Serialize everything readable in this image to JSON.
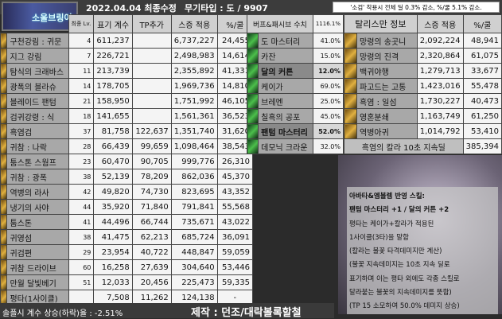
{
  "header": {
    "logo_text": "소울브링어",
    "date": "2022.04.04 최종수정",
    "weapon": "무기타입 : 도 / 9907",
    "notice": "'소검' 착용시 전체 딜 0.3% 감소, %/쿨 5.1% 감소."
  },
  "skills": {
    "columns": [
      "최종 Lv.",
      "표기 계수",
      "TP추가",
      "스증 적용",
      "%/쿨"
    ],
    "rows": [
      {
        "name": "구천강림 : 귀문",
        "lv": "4",
        "base": "611,237",
        "tp": "",
        "applied": "6,737,227",
        "cool": "24,455"
      },
      {
        "name": "지그 강림",
        "lv": "7",
        "base": "226,721",
        "tp": "",
        "applied": "2,498,983",
        "cool": "14,614"
      },
      {
        "name": "탐식의 크래바스",
        "lv": "11",
        "base": "213,739",
        "tp": "",
        "applied": "2,355,892",
        "cool": "41,331"
      },
      {
        "name": "광폭의 블라슈",
        "lv": "14",
        "base": "178,705",
        "tp": "",
        "applied": "1,969,736",
        "cool": "14,810"
      },
      {
        "name": "블레이드 팬텀",
        "lv": "21",
        "base": "158,950",
        "tp": "",
        "applied": "1,751,992",
        "cool": "46,105"
      },
      {
        "name": "검귀강령 : 식",
        "lv": "18",
        "base": "141,655",
        "tp": "",
        "applied": "1,561,361",
        "cool": "36,523"
      },
      {
        "name": "흑염검",
        "lv": "37",
        "base": "81,758",
        "tp": "122,637",
        "applied": "1,351,740",
        "cool": "31,620"
      },
      {
        "name": "귀참 : 나락",
        "lv": "28",
        "base": "66,439",
        "tp": "99,659",
        "applied": "1,098,464",
        "cool": "38,543"
      },
      {
        "name": "툼스톤 스웜프",
        "lv": "23",
        "base": "60,470",
        "tp": "90,705",
        "applied": "999,776",
        "cool": "26,310"
      },
      {
        "name": "귀참 : 광폭",
        "lv": "38",
        "base": "52,139",
        "tp": "78,209",
        "applied": "862,036",
        "cool": "45,370"
      },
      {
        "name": "역병의 라사",
        "lv": "42",
        "base": "49,820",
        "tp": "74,730",
        "applied": "823,695",
        "cool": "43,352"
      },
      {
        "name": "냉기의 사야",
        "lv": "44",
        "base": "35,920",
        "tp": "71,840",
        "applied": "791,841",
        "cool": "55,568"
      },
      {
        "name": "툼스톤",
        "lv": "41",
        "base": "44,496",
        "tp": "66,744",
        "applied": "735,671",
        "cool": "43,022"
      },
      {
        "name": "귀영섬",
        "lv": "38",
        "base": "41,475",
        "tp": "62,213",
        "applied": "685,724",
        "cool": "36,091"
      },
      {
        "name": "귀검편",
        "lv": "29",
        "base": "23,954",
        "tp": "40,722",
        "applied": "448,847",
        "cool": "59,059"
      },
      {
        "name": "귀참 드라이브",
        "lv": "60",
        "base": "16,258",
        "tp": "27,639",
        "applied": "304,640",
        "cool": "53,446"
      },
      {
        "name": "만월 달빛베기",
        "lv": "51",
        "base": "12,033",
        "tp": "20,456",
        "applied": "225,473",
        "cool": "59,335"
      },
      {
        "name": "평타(1사이클)",
        "lv": "",
        "base": "7,508",
        "tp": "11,262",
        "applied": "124,138",
        "cool": "-"
      }
    ]
  },
  "buffs": {
    "header": "버프&패시브 수치",
    "total": "1116.1%",
    "rows": [
      {
        "name": "도 마스터리",
        "pct": "41.0%",
        "hl": false
      },
      {
        "name": "카잔",
        "pct": "15.0%",
        "hl": false
      },
      {
        "name": "달의 커튼",
        "pct": "12.0%",
        "hl": true
      },
      {
        "name": "케이가",
        "pct": "69.0%",
        "hl": false
      },
      {
        "name": "브레멘",
        "pct": "25.0%",
        "hl": false
      },
      {
        "name": "칠흑의 공포",
        "pct": "45.0%",
        "hl": false
      },
      {
        "name": "팬텀 마스터리",
        "pct": "52.0%",
        "hl": true
      },
      {
        "name": "데모닉 크라운",
        "pct": "32.0%",
        "hl": false
      }
    ]
  },
  "talismans": {
    "header": "탈리스만 정보",
    "col_applied": "스증 적용",
    "col_cool": "%/쿨",
    "rows": [
      {
        "name": "망령의 송곳니",
        "applied": "2,092,224",
        "cool": "48,941"
      },
      {
        "name": "망령의 진격",
        "applied": "2,320,864",
        "cool": "61,075"
      },
      {
        "name": "백귀야행",
        "applied": "1,279,713",
        "cool": "33,677"
      },
      {
        "name": "파고드는 고통",
        "applied": "1,423,016",
        "cool": "55,478"
      },
      {
        "name": "흑염 : 일섬",
        "applied": "1,730,227",
        "cool": "40,473"
      },
      {
        "name": "영혼분쇄",
        "applied": "1,163,749",
        "cool": "61,250"
      },
      {
        "name": "역병아귀",
        "applied": "1,014,792",
        "cool": "53,410"
      }
    ],
    "dot_label": "흑염의 칼라 10초 지속딜",
    "dot_value": "385,394"
  },
  "footer": {
    "ratio": "솔플시 계수 상승(하락)율 : -2.51%",
    "credit": "제작 : 던조/대락볼록할철"
  },
  "notes": [
    "아바타&엠블렘 반영 스킬:",
    "팬텀 마스터리 +1 / 달의 커튼 +2",
    "평타는 케이가+칼라가 적용된",
    "1사이클(3타)을 말함",
    "(칼라는 불꽃 타격데미지만 계산)",
    "(불꽃 지속데미지는 10초 지속 딜로",
    "표기하며 이는 평타 외에도 각종 스킬로",
    "달라붙는 불꽃의 지속데미지를 뜻함)",
    "(TP 15 소모하여 50.0% 데미지 상승)"
  ]
}
